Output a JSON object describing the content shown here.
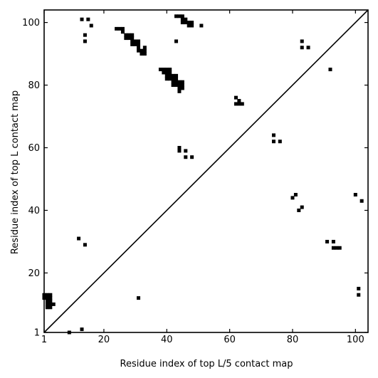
{
  "chart_data": {
    "type": "heatmap",
    "title": "",
    "xlabel": "Residue index of top L/5 contact map",
    "ylabel": "Residue index of top L contact map",
    "xlim": [
      1,
      104
    ],
    "ylim": [
      1,
      104
    ],
    "x_ticks": [
      1,
      20,
      40,
      60,
      80,
      100
    ],
    "x_tick_labels": [
      "1",
      "20",
      "40",
      "60",
      "80",
      "100"
    ],
    "y_ticks": [
      1,
      20,
      40,
      60,
      80,
      100
    ],
    "y_tick_labels": [
      "1",
      "20",
      "40",
      "60",
      "80",
      "100"
    ],
    "diagonal": true,
    "grid": false,
    "colors": {
      "contact": "#000000",
      "background": "#ffffff",
      "axes": "#000000"
    },
    "cells": [
      [
        13,
        101
      ],
      [
        15,
        101
      ],
      [
        16,
        99
      ],
      [
        14,
        96
      ],
      [
        14,
        94
      ],
      [
        24,
        98
      ],
      [
        25,
        98
      ],
      [
        26,
        98
      ],
      [
        26,
        97
      ],
      [
        27,
        96
      ],
      [
        28,
        96
      ],
      [
        29,
        96
      ],
      [
        27,
        95
      ],
      [
        28,
        95
      ],
      [
        29,
        95
      ],
      [
        29,
        94
      ],
      [
        30,
        94
      ],
      [
        31,
        94
      ],
      [
        29,
        93
      ],
      [
        30,
        93
      ],
      [
        31,
        93
      ],
      [
        31,
        92
      ],
      [
        33,
        92
      ],
      [
        31,
        91
      ],
      [
        32,
        91
      ],
      [
        33,
        91
      ],
      [
        32,
        90
      ],
      [
        33,
        90
      ],
      [
        43,
        102
      ],
      [
        44,
        102
      ],
      [
        45,
        102
      ],
      [
        45,
        101
      ],
      [
        46,
        101
      ],
      [
        45,
        100
      ],
      [
        46,
        100
      ],
      [
        47,
        100
      ],
      [
        48,
        100
      ],
      [
        47,
        99
      ],
      [
        48,
        99
      ],
      [
        51,
        99
      ],
      [
        43,
        94
      ],
      [
        38,
        85
      ],
      [
        39,
        85
      ],
      [
        40,
        85
      ],
      [
        41,
        85
      ],
      [
        39,
        84
      ],
      [
        40,
        84
      ],
      [
        41,
        84
      ],
      [
        40,
        83
      ],
      [
        41,
        83
      ],
      [
        42,
        83
      ],
      [
        43,
        83
      ],
      [
        40,
        82
      ],
      [
        41,
        82
      ],
      [
        42,
        82
      ],
      [
        43,
        82
      ],
      [
        42,
        81
      ],
      [
        43,
        81
      ],
      [
        44,
        81
      ],
      [
        45,
        81
      ],
      [
        42,
        80
      ],
      [
        43,
        80
      ],
      [
        44,
        80
      ],
      [
        45,
        80
      ],
      [
        44,
        79
      ],
      [
        45,
        79
      ],
      [
        44,
        78
      ],
      [
        62,
        76
      ],
      [
        63,
        75
      ],
      [
        62,
        74
      ],
      [
        63,
        74
      ],
      [
        64,
        74
      ],
      [
        44,
        60
      ],
      [
        44,
        59
      ],
      [
        46,
        59
      ],
      [
        46,
        57
      ],
      [
        48,
        57
      ],
      [
        74,
        64
      ],
      [
        74,
        62
      ],
      [
        76,
        62
      ],
      [
        83,
        94
      ],
      [
        83,
        92
      ],
      [
        85,
        92
      ],
      [
        92,
        85
      ],
      [
        81,
        45
      ],
      [
        80,
        44
      ],
      [
        82,
        40
      ],
      [
        83,
        41
      ],
      [
        100,
        45
      ],
      [
        102,
        43
      ],
      [
        91,
        30
      ],
      [
        93,
        30
      ],
      [
        93,
        28
      ],
      [
        94,
        28
      ],
      [
        95,
        28
      ],
      [
        101,
        15
      ],
      [
        101,
        13
      ],
      [
        12,
        31
      ],
      [
        14,
        29
      ],
      [
        31,
        12
      ],
      [
        13,
        2
      ],
      [
        9,
        1
      ],
      [
        1,
        13
      ],
      [
        2,
        13
      ],
      [
        3,
        13
      ],
      [
        1,
        12
      ],
      [
        2,
        12
      ],
      [
        3,
        12
      ],
      [
        2,
        11
      ],
      [
        3,
        11
      ],
      [
        2,
        10
      ],
      [
        3,
        10
      ],
      [
        4,
        10
      ],
      [
        2,
        9
      ],
      [
        3,
        9
      ]
    ]
  }
}
